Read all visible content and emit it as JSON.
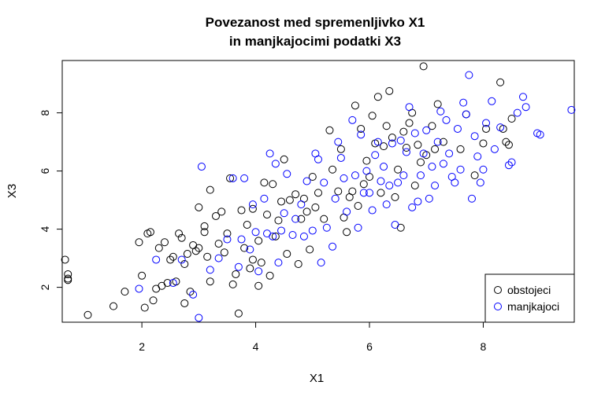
{
  "chart_data": {
    "type": "scatter",
    "title_line1": "Povezanost med spremenljivko X1",
    "title_line2": "in manjkajocimi podatki X3",
    "xlabel": "X1",
    "ylabel": "X3",
    "xlim": [
      0.6,
      9.6
    ],
    "ylim": [
      0.8,
      9.8
    ],
    "xticks": [
      "2",
      "4",
      "6",
      "8"
    ],
    "yticks": [
      "2",
      "4",
      "6",
      "8"
    ],
    "grid": false,
    "legend_position": "bottom-right",
    "series": [
      {
        "name": "obstojeci",
        "color": "#000000",
        "points": [
          [
            0.65,
            2.95
          ],
          [
            0.7,
            2.45
          ],
          [
            0.7,
            2.25
          ],
          [
            0.7,
            2.3
          ],
          [
            1.05,
            1.05
          ],
          [
            1.5,
            1.35
          ],
          [
            1.7,
            1.85
          ],
          [
            1.95,
            3.55
          ],
          [
            2.0,
            2.4
          ],
          [
            2.05,
            1.3
          ],
          [
            2.1,
            3.85
          ],
          [
            2.15,
            3.9
          ],
          [
            2.2,
            1.55
          ],
          [
            2.25,
            1.95
          ],
          [
            2.3,
            3.35
          ],
          [
            2.35,
            2.05
          ],
          [
            2.4,
            3.55
          ],
          [
            2.45,
            2.15
          ],
          [
            2.5,
            2.95
          ],
          [
            2.55,
            3.05
          ],
          [
            2.6,
            2.2
          ],
          [
            2.65,
            3.85
          ],
          [
            2.7,
            3.7
          ],
          [
            2.75,
            2.8
          ],
          [
            2.75,
            1.45
          ],
          [
            2.8,
            3.15
          ],
          [
            2.85,
            1.85
          ],
          [
            2.9,
            3.45
          ],
          [
            2.95,
            3.25
          ],
          [
            3.0,
            3.35
          ],
          [
            3.0,
            4.75
          ],
          [
            3.1,
            3.9
          ],
          [
            3.1,
            4.1
          ],
          [
            3.15,
            3.05
          ],
          [
            3.2,
            2.2
          ],
          [
            3.2,
            5.35
          ],
          [
            3.3,
            4.45
          ],
          [
            3.35,
            3.5
          ],
          [
            3.4,
            4.6
          ],
          [
            3.45,
            3.2
          ],
          [
            3.5,
            3.85
          ],
          [
            3.55,
            5.75
          ],
          [
            3.6,
            2.1
          ],
          [
            3.65,
            2.45
          ],
          [
            3.7,
            1.1
          ],
          [
            3.75,
            4.65
          ],
          [
            3.8,
            3.35
          ],
          [
            3.85,
            4.15
          ],
          [
            3.9,
            2.65
          ],
          [
            3.95,
            4.7
          ],
          [
            3.95,
            2.95
          ],
          [
            4.05,
            3.6
          ],
          [
            4.05,
            2.05
          ],
          [
            4.1,
            2.85
          ],
          [
            4.15,
            5.6
          ],
          [
            4.2,
            4.5
          ],
          [
            4.25,
            2.4
          ],
          [
            4.3,
            5.55
          ],
          [
            4.35,
            3.75
          ],
          [
            4.4,
            4.3
          ],
          [
            4.45,
            4.95
          ],
          [
            4.5,
            6.4
          ],
          [
            4.55,
            3.15
          ],
          [
            4.6,
            5.0
          ],
          [
            4.7,
            5.2
          ],
          [
            4.75,
            2.8
          ],
          [
            4.8,
            4.35
          ],
          [
            4.85,
            5.05
          ],
          [
            4.9,
            4.6
          ],
          [
            4.95,
            3.3
          ],
          [
            5.0,
            5.8
          ],
          [
            5.05,
            4.75
          ],
          [
            5.1,
            5.25
          ],
          [
            5.2,
            4.35
          ],
          [
            5.3,
            7.4
          ],
          [
            5.35,
            6.05
          ],
          [
            5.45,
            5.3
          ],
          [
            5.5,
            6.75
          ],
          [
            5.55,
            4.4
          ],
          [
            5.6,
            3.9
          ],
          [
            5.65,
            5.1
          ],
          [
            5.7,
            5.3
          ],
          [
            5.75,
            8.25
          ],
          [
            5.8,
            4.8
          ],
          [
            5.85,
            7.45
          ],
          [
            5.9,
            5.55
          ],
          [
            5.95,
            6.35
          ],
          [
            6.0,
            5.8
          ],
          [
            6.05,
            7.9
          ],
          [
            6.1,
            6.95
          ],
          [
            6.15,
            8.55
          ],
          [
            6.2,
            5.25
          ],
          [
            6.25,
            6.85
          ],
          [
            6.3,
            7.55
          ],
          [
            6.35,
            8.75
          ],
          [
            6.4,
            7.15
          ],
          [
            6.45,
            5.1
          ],
          [
            6.5,
            6.05
          ],
          [
            6.55,
            4.05
          ],
          [
            6.6,
            7.35
          ],
          [
            6.65,
            6.8
          ],
          [
            6.7,
            7.65
          ],
          [
            6.75,
            8.0
          ],
          [
            6.8,
            5.5
          ],
          [
            6.85,
            6.9
          ],
          [
            6.9,
            6.3
          ],
          [
            6.95,
            9.6
          ],
          [
            7.0,
            6.55
          ],
          [
            7.1,
            7.55
          ],
          [
            7.15,
            6.75
          ],
          [
            7.2,
            8.3
          ],
          [
            7.3,
            7.0
          ],
          [
            7.6,
            6.75
          ],
          [
            7.7,
            7.95
          ],
          [
            7.85,
            5.85
          ],
          [
            8.0,
            6.95
          ],
          [
            8.05,
            7.45
          ],
          [
            8.3,
            9.05
          ],
          [
            8.35,
            7.45
          ],
          [
            8.4,
            7.0
          ],
          [
            8.5,
            7.8
          ],
          [
            8.45,
            6.9
          ]
        ]
      },
      {
        "name": "manjkajoci",
        "color": "#0000ff",
        "points": [
          [
            1.95,
            1.95
          ],
          [
            2.25,
            2.95
          ],
          [
            2.55,
            2.15
          ],
          [
            2.7,
            2.95
          ],
          [
            2.9,
            1.75
          ],
          [
            3.0,
            0.95
          ],
          [
            3.05,
            6.15
          ],
          [
            3.2,
            2.6
          ],
          [
            3.35,
            3.0
          ],
          [
            3.5,
            3.65
          ],
          [
            3.6,
            5.75
          ],
          [
            3.7,
            2.7
          ],
          [
            3.75,
            3.65
          ],
          [
            3.8,
            5.75
          ],
          [
            3.9,
            3.3
          ],
          [
            3.95,
            4.85
          ],
          [
            4.0,
            3.9
          ],
          [
            4.05,
            2.55
          ],
          [
            4.15,
            5.05
          ],
          [
            4.2,
            3.85
          ],
          [
            4.25,
            6.6
          ],
          [
            4.3,
            3.75
          ],
          [
            4.35,
            6.25
          ],
          [
            4.4,
            2.85
          ],
          [
            4.45,
            3.95
          ],
          [
            4.5,
            4.55
          ],
          [
            4.55,
            5.9
          ],
          [
            4.65,
            3.8
          ],
          [
            4.7,
            4.35
          ],
          [
            4.8,
            4.85
          ],
          [
            4.85,
            3.75
          ],
          [
            4.9,
            5.65
          ],
          [
            5.0,
            3.95
          ],
          [
            5.05,
            6.6
          ],
          [
            5.1,
            6.4
          ],
          [
            5.15,
            2.85
          ],
          [
            5.2,
            5.6
          ],
          [
            5.25,
            4.05
          ],
          [
            5.35,
            3.4
          ],
          [
            5.4,
            5.05
          ],
          [
            5.45,
            7.0
          ],
          [
            5.5,
            6.45
          ],
          [
            5.55,
            5.75
          ],
          [
            5.6,
            4.6
          ],
          [
            5.7,
            7.75
          ],
          [
            5.75,
            5.85
          ],
          [
            5.8,
            4.05
          ],
          [
            5.85,
            7.25
          ],
          [
            5.9,
            5.25
          ],
          [
            5.95,
            6.0
          ],
          [
            6.0,
            5.25
          ],
          [
            6.05,
            4.65
          ],
          [
            6.1,
            6.55
          ],
          [
            6.15,
            7.0
          ],
          [
            6.2,
            5.65
          ],
          [
            6.25,
            6.15
          ],
          [
            6.3,
            4.85
          ],
          [
            6.35,
            5.5
          ],
          [
            6.4,
            6.95
          ],
          [
            6.45,
            4.15
          ],
          [
            6.5,
            5.6
          ],
          [
            6.55,
            7.05
          ],
          [
            6.6,
            5.85
          ],
          [
            6.65,
            6.65
          ],
          [
            6.7,
            8.2
          ],
          [
            6.75,
            4.75
          ],
          [
            6.8,
            7.3
          ],
          [
            6.85,
            4.95
          ],
          [
            6.9,
            5.85
          ],
          [
            6.95,
            6.6
          ],
          [
            7.0,
            7.4
          ],
          [
            7.05,
            5.05
          ],
          [
            7.1,
            6.15
          ],
          [
            7.15,
            5.5
          ],
          [
            7.2,
            7.0
          ],
          [
            7.25,
            8.05
          ],
          [
            7.3,
            6.25
          ],
          [
            7.35,
            7.75
          ],
          [
            7.4,
            6.6
          ],
          [
            7.45,
            5.8
          ],
          [
            7.5,
            5.6
          ],
          [
            7.55,
            7.45
          ],
          [
            7.6,
            6.05
          ],
          [
            7.65,
            8.35
          ],
          [
            7.7,
            7.95
          ],
          [
            7.75,
            9.3
          ],
          [
            7.8,
            5.05
          ],
          [
            7.85,
            7.2
          ],
          [
            7.9,
            6.5
          ],
          [
            7.95,
            5.6
          ],
          [
            8.0,
            6.05
          ],
          [
            8.05,
            7.65
          ],
          [
            8.15,
            8.4
          ],
          [
            8.2,
            6.75
          ],
          [
            8.3,
            7.5
          ],
          [
            8.45,
            6.2
          ],
          [
            8.5,
            6.3
          ],
          [
            8.6,
            8.0
          ],
          [
            8.7,
            8.55
          ],
          [
            8.75,
            8.2
          ],
          [
            8.95,
            7.3
          ],
          [
            9.0,
            7.25
          ],
          [
            9.55,
            8.1
          ]
        ]
      }
    ]
  }
}
